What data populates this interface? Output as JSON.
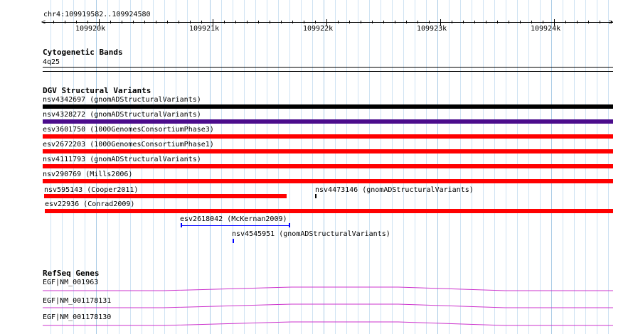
{
  "ruler": {
    "location": "chr4:109919582..109924580",
    "ticks": [
      "109920k",
      "109921k",
      "109922k",
      "109923k",
      "109924k"
    ]
  },
  "cytoband": {
    "title": "Cytogenetic Bands",
    "band_label": "4q25"
  },
  "dgv": {
    "title": "DGV Structural Variants",
    "features": [
      {
        "label": "nsv4342697 (gnomADStructuralVariants)",
        "color": "#000000"
      },
      {
        "label": "nsv4328272 (gnomADStructuralVariants)",
        "color": "#4b0c8c"
      },
      {
        "label": "esv3601750 (1000GenomesConsortiumPhase3)",
        "color": "#ff0000"
      },
      {
        "label": "esv2672203 (1000GenomesConsortiumPhase1)",
        "color": "#ff0000"
      },
      {
        "label": "nsv4111793 (gnomADStructuralVariants)",
        "color": "#ff0000"
      },
      {
        "label": "nsv290769 (Mills2006)",
        "color": "#ff0000"
      },
      {
        "label": "nsv595143 (Cooper2011)",
        "color": "#ff0000"
      },
      {
        "label": "nsv4473146 (gnomADStructuralVariants)",
        "color": "#000000"
      },
      {
        "label": "esv22936 (Conrad2009)",
        "color": "#ff0000"
      },
      {
        "label": "esv2618042 (McKernan2009)",
        "color": "#0000ff"
      },
      {
        "label": "nsv4545951 (gnomADStructuralVariants)",
        "color": "#0000ff"
      }
    ]
  },
  "refseq": {
    "title": "RefSeq Genes",
    "genes": [
      {
        "label": "EGF|NM_001963"
      },
      {
        "label": "EGF|NM_001178131"
      },
      {
        "label": "EGF|NM_001178130"
      }
    ],
    "color": "#cc33cc"
  }
}
